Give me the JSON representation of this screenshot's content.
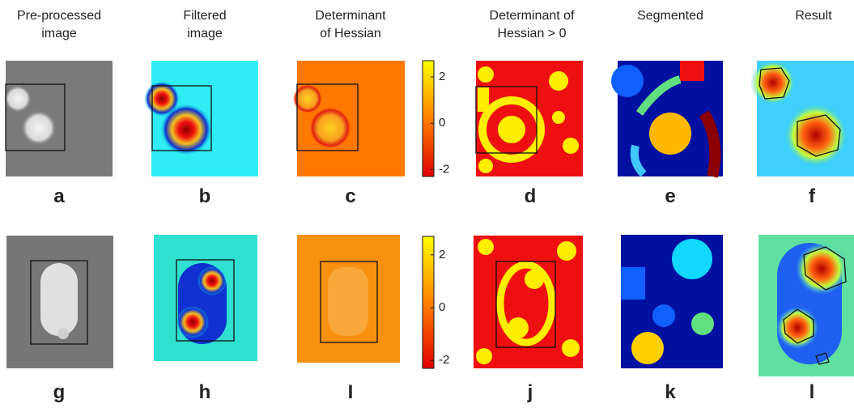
{
  "columns": [
    [
      "Pre-processed",
      "image"
    ],
    [
      "Filtered",
      "image"
    ],
    [
      "Determinant",
      "of Hessian"
    ],
    [
      "Determinant of",
      "Hessian > 0"
    ],
    [
      "Segmented"
    ],
    [
      "Result"
    ]
  ],
  "panel_letters": [
    [
      "a",
      "b",
      "c",
      "d",
      "e",
      "f"
    ],
    [
      "g",
      "h",
      "I",
      "j",
      "k",
      "l"
    ]
  ],
  "colorbars": [
    {
      "lim": [
        -2.3,
        2.7
      ],
      "ticks": [
        2,
        0,
        -2
      ]
    },
    {
      "lim": [
        -2.3,
        2.7
      ],
      "ticks": [
        2,
        0,
        -2
      ]
    }
  ]
}
